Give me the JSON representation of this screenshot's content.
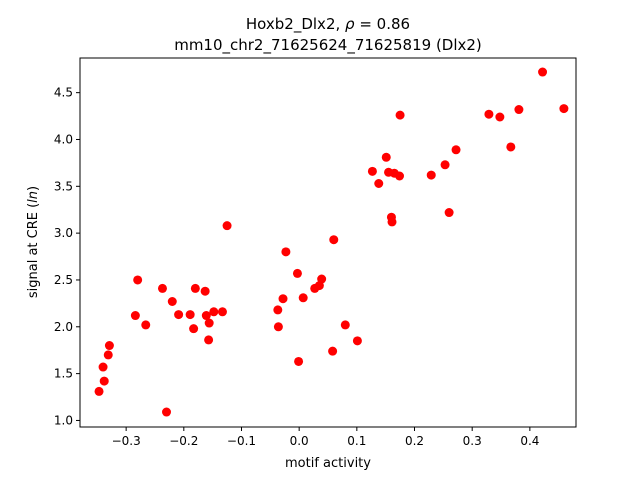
{
  "chart_data": {
    "type": "scatter",
    "title_line1_prefix": "Hoxb2_Dlx2, ",
    "title_rho_symbol": "ρ",
    "title_rho_value": " = 0.86",
    "title_line2": "mm10_chr2_71625624_71625819 (Dlx2)",
    "xlabel": "motif activity",
    "ylabel_prefix": "signal at CRE (",
    "ylabel_italic": "ln",
    "ylabel_suffix": ")",
    "xlim": [
      -0.38,
      0.48
    ],
    "ylim": [
      0.93,
      4.87
    ],
    "xticks": [
      -0.3,
      -0.2,
      -0.1,
      0.0,
      0.1,
      0.2,
      0.3,
      0.4
    ],
    "xtick_labels": [
      "−0.3",
      "−0.2",
      "−0.1",
      "0.0",
      "0.1",
      "0.2",
      "0.3",
      "0.4"
    ],
    "yticks": [
      1.0,
      1.5,
      2.0,
      2.5,
      3.0,
      3.5,
      4.0,
      4.5
    ],
    "ytick_labels": [
      "1.0",
      "1.5",
      "2.0",
      "2.5",
      "3.0",
      "3.5",
      "4.0",
      "4.5"
    ],
    "grid": false,
    "marker_color": "#ff0000",
    "points": [
      {
        "x": -0.347,
        "y": 1.31
      },
      {
        "x": -0.34,
        "y": 1.57
      },
      {
        "x": -0.338,
        "y": 1.42
      },
      {
        "x": -0.331,
        "y": 1.7
      },
      {
        "x": -0.329,
        "y": 1.8
      },
      {
        "x": -0.284,
        "y": 2.12
      },
      {
        "x": -0.28,
        "y": 2.5
      },
      {
        "x": -0.266,
        "y": 2.02
      },
      {
        "x": -0.237,
        "y": 2.41
      },
      {
        "x": -0.23,
        "y": 1.09
      },
      {
        "x": -0.22,
        "y": 2.27
      },
      {
        "x": -0.209,
        "y": 2.13
      },
      {
        "x": -0.189,
        "y": 2.13
      },
      {
        "x": -0.183,
        "y": 1.98
      },
      {
        "x": -0.18,
        "y": 2.41
      },
      {
        "x": -0.163,
        "y": 2.38
      },
      {
        "x": -0.161,
        "y": 2.12
      },
      {
        "x": -0.157,
        "y": 1.86
      },
      {
        "x": -0.156,
        "y": 2.04
      },
      {
        "x": -0.148,
        "y": 2.16
      },
      {
        "x": -0.133,
        "y": 2.16
      },
      {
        "x": -0.125,
        "y": 3.08
      },
      {
        "x": -0.037,
        "y": 2.18
      },
      {
        "x": -0.036,
        "y": 2.0
      },
      {
        "x": -0.028,
        "y": 2.3
      },
      {
        "x": -0.023,
        "y": 2.8
      },
      {
        "x": -0.003,
        "y": 2.57
      },
      {
        "x": -0.001,
        "y": 1.63
      },
      {
        "x": 0.007,
        "y": 2.31
      },
      {
        "x": 0.027,
        "y": 2.41
      },
      {
        "x": 0.035,
        "y": 2.44
      },
      {
        "x": 0.039,
        "y": 2.51
      },
      {
        "x": 0.058,
        "y": 1.74
      },
      {
        "x": 0.06,
        "y": 2.93
      },
      {
        "x": 0.08,
        "y": 2.02
      },
      {
        "x": 0.101,
        "y": 1.85
      },
      {
        "x": 0.127,
        "y": 3.66
      },
      {
        "x": 0.138,
        "y": 3.53
      },
      {
        "x": 0.151,
        "y": 3.81
      },
      {
        "x": 0.155,
        "y": 3.65
      },
      {
        "x": 0.16,
        "y": 3.17
      },
      {
        "x": 0.161,
        "y": 3.12
      },
      {
        "x": 0.165,
        "y": 3.64
      },
      {
        "x": 0.174,
        "y": 3.61
      },
      {
        "x": 0.175,
        "y": 4.26
      },
      {
        "x": 0.229,
        "y": 3.62
      },
      {
        "x": 0.253,
        "y": 3.73
      },
      {
        "x": 0.26,
        "y": 3.22
      },
      {
        "x": 0.272,
        "y": 3.89
      },
      {
        "x": 0.329,
        "y": 4.27
      },
      {
        "x": 0.348,
        "y": 4.24
      },
      {
        "x": 0.367,
        "y": 3.92
      },
      {
        "x": 0.381,
        "y": 4.32
      },
      {
        "x": 0.422,
        "y": 4.72
      },
      {
        "x": 0.459,
        "y": 4.33
      }
    ]
  }
}
